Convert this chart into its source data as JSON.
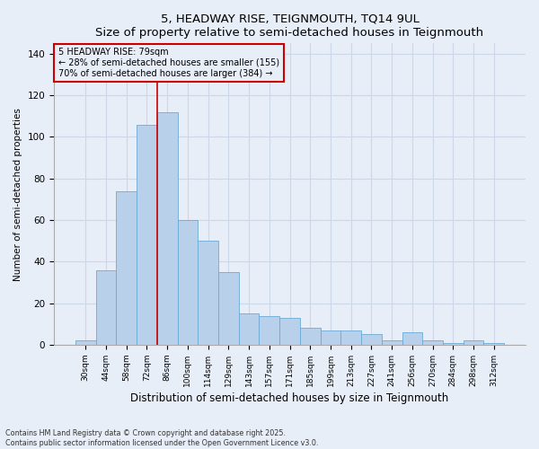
{
  "title": "5, HEADWAY RISE, TEIGNMOUTH, TQ14 9UL",
  "subtitle": "Size of property relative to semi-detached houses in Teignmouth",
  "xlabel": "Distribution of semi-detached houses by size in Teignmouth",
  "ylabel": "Number of semi-detached properties",
  "categories": [
    "30sqm",
    "44sqm",
    "58sqm",
    "72sqm",
    "86sqm",
    "100sqm",
    "114sqm",
    "129sqm",
    "143sqm",
    "157sqm",
    "171sqm",
    "185sqm",
    "199sqm",
    "213sqm",
    "227sqm",
    "241sqm",
    "256sqm",
    "270sqm",
    "284sqm",
    "298sqm",
    "312sqm"
  ],
  "values": [
    2,
    36,
    74,
    106,
    112,
    60,
    50,
    35,
    15,
    14,
    13,
    8,
    7,
    7,
    5,
    2,
    6,
    2,
    1,
    2,
    1
  ],
  "bar_color": "#b8d0ea",
  "bar_edge_color": "#6aaad4",
  "annotation_line1": "5 HEADWAY RISE: 79sqm",
  "annotation_line2": "← 28% of semi-detached houses are smaller (155)",
  "annotation_line3": "70% of semi-detached houses are larger (384) →",
  "ylim": [
    0,
    145
  ],
  "yticks": [
    0,
    20,
    40,
    60,
    80,
    100,
    120,
    140
  ],
  "red_line_color": "#cc0000",
  "annotation_box_color": "#cc0000",
  "grid_color": "#ccd8e8",
  "bg_color": "#e8eef8",
  "footnote1": "Contains HM Land Registry data © Crown copyright and database right 2025.",
  "footnote2": "Contains public sector information licensed under the Open Government Licence v3.0.",
  "red_line_x": 3.5
}
